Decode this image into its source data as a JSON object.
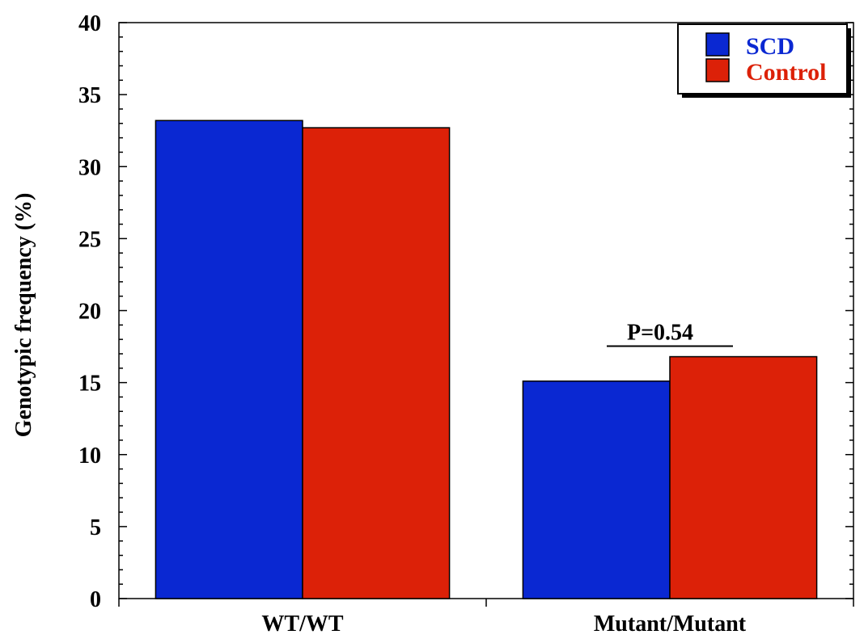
{
  "chart_data": {
    "type": "bar",
    "title": "",
    "xlabel": "",
    "ylabel": "Genotypic frequency (%)",
    "ylim": [
      0,
      40
    ],
    "yticks": [
      0,
      5,
      10,
      15,
      20,
      25,
      30,
      35,
      40
    ],
    "categories": [
      "WT/WT",
      "Mutant/Mutant"
    ],
    "series": [
      {
        "name": "SCD",
        "color": "#0a28d2",
        "values": [
          33.2,
          15.1
        ]
      },
      {
        "name": "Control",
        "color": "#dc2108",
        "values": [
          32.7,
          16.8
        ]
      }
    ],
    "legend_position": "top-right",
    "grid": false,
    "annotations": [
      {
        "text": "P=0.54",
        "category": "Mutant/Mutant"
      }
    ]
  }
}
